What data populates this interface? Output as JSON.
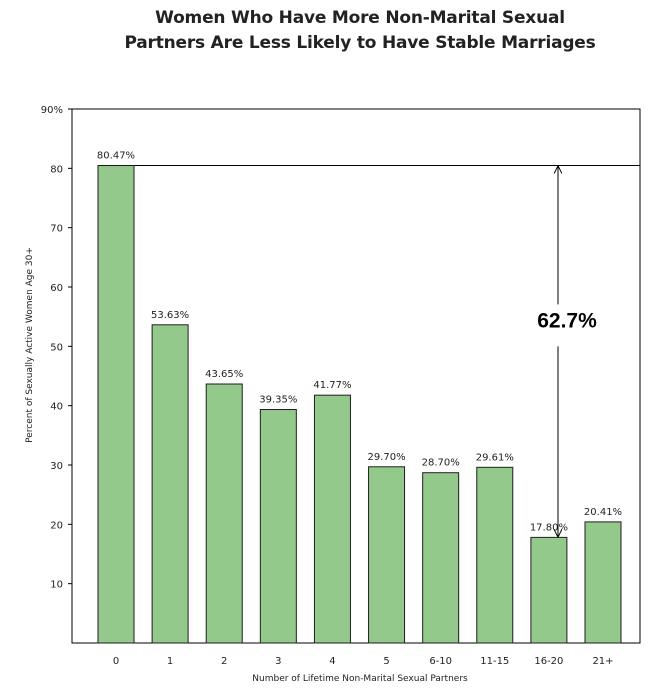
{
  "chart_data": {
    "type": "bar",
    "title_line1": "Women Who Have More Non-Marital Sexual",
    "title_line2": "Partners Are Less Likely to Have Stable Marriages",
    "xlabel": "Number of Lifetime Non-Marital Sexual Partners",
    "ylabel": "Percent of Sexually Active Women Age 30+",
    "categories": [
      "0",
      "1",
      "2",
      "3",
      "4",
      "5",
      "6-10",
      "11-15",
      "16-20",
      "21+"
    ],
    "values": [
      80.47,
      53.63,
      43.65,
      39.35,
      41.77,
      29.7,
      28.7,
      29.61,
      17.8,
      20.41
    ],
    "data_labels": [
      "80.47%",
      "53.63%",
      "43.65%",
      "39.35%",
      "41.77%",
      "29.70%",
      "28.70%",
      "29.61%",
      "17.80%",
      "20.41%"
    ],
    "ylim": [
      0,
      90
    ],
    "yticks": [
      {
        "value": 10,
        "label": "10"
      },
      {
        "value": 20,
        "label": "20"
      },
      {
        "value": 30,
        "label": "30"
      },
      {
        "value": 40,
        "label": "40"
      },
      {
        "value": 50,
        "label": "50"
      },
      {
        "value": 60,
        "label": "60"
      },
      {
        "value": 70,
        "label": "70"
      },
      {
        "value": 80,
        "label": "80"
      },
      {
        "value": 90,
        "label": "90%"
      }
    ],
    "grid": false,
    "bar_color": "#93c98a",
    "bar_edge_color": "#1e1e1e",
    "annotation": {
      "text": "62.7%",
      "from_value": 80.47,
      "to_value": 17.8
    }
  }
}
